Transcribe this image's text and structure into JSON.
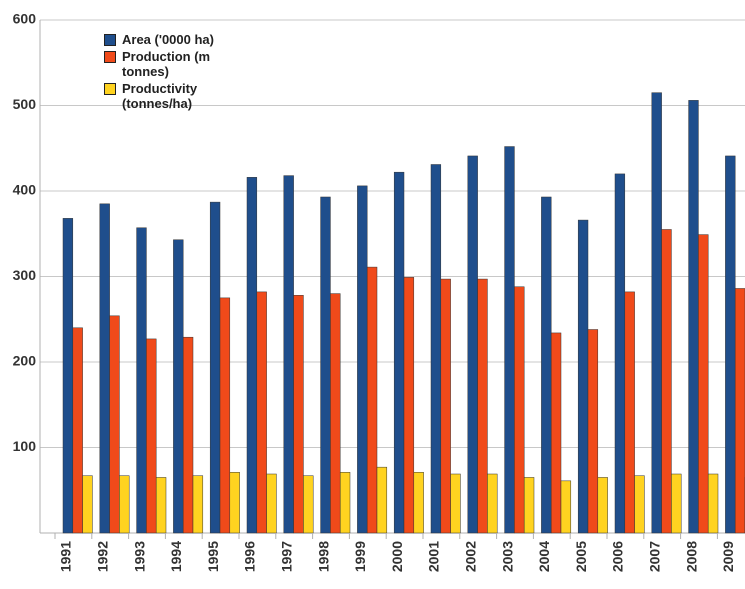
{
  "chart_data": {
    "type": "bar",
    "categories": [
      "1991",
      "1992",
      "1993",
      "1994",
      "1995",
      "1996",
      "1997",
      "1998",
      "1999",
      "2000",
      "2001",
      "2002",
      "2003",
      "2004",
      "2005",
      "2006",
      "2007",
      "2008",
      "2009"
    ],
    "series": [
      {
        "name": "Area ('0000 ha)",
        "color": "#1f4e8c",
        "values": [
          368,
          385,
          357,
          343,
          387,
          416,
          418,
          393,
          406,
          422,
          431,
          441,
          452,
          393,
          366,
          420,
          515,
          506,
          441
        ]
      },
      {
        "name": "Production (m tonnes)",
        "color": "#f04a1a",
        "values": [
          240,
          254,
          227,
          229,
          275,
          282,
          278,
          280,
          311,
          299,
          297,
          297,
          288,
          234,
          238,
          282,
          355,
          349,
          286
        ]
      },
      {
        "name": "Productivity (tonnes/ha)",
        "color": "#ffd320",
        "values": [
          67,
          67,
          65,
          67,
          71,
          69,
          67,
          71,
          77,
          71,
          69,
          69,
          65,
          61,
          65,
          67,
          69,
          69,
          65
        ]
      }
    ],
    "ylim": [
      0,
      600
    ],
    "yticks": [
      100,
      200,
      300,
      400,
      500,
      600
    ],
    "grid": true
  }
}
